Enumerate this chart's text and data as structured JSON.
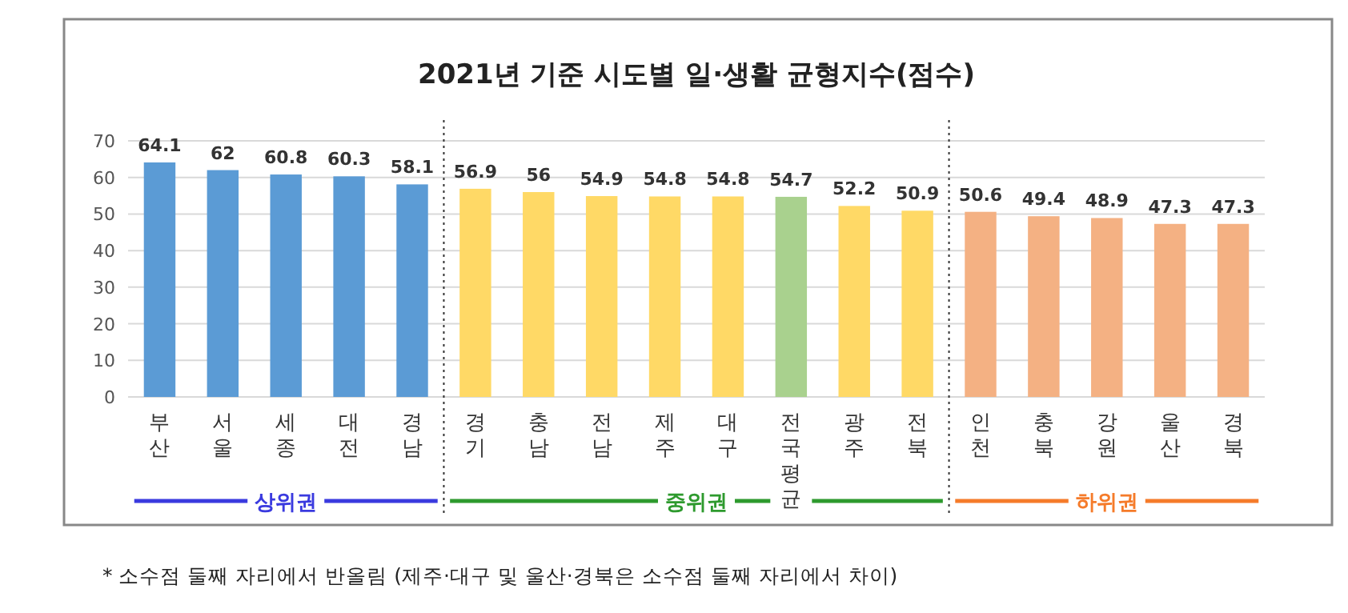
{
  "chart_data": {
    "type": "bar",
    "title": "2021년 기준 시도별 일·생활 균형지수(점수)",
    "categories": [
      "부산",
      "서울",
      "세종",
      "대전",
      "경남",
      "경기",
      "충남",
      "전남",
      "제주",
      "대구",
      "전국평균",
      "광주",
      "전북",
      "인천",
      "충북",
      "강원",
      "울산",
      "경북"
    ],
    "values": [
      64.1,
      62,
      60.8,
      60.3,
      58.1,
      56.9,
      56,
      54.9,
      54.8,
      54.8,
      54.7,
      52.2,
      50.9,
      50.6,
      49.4,
      48.9,
      47.3,
      47.3
    ],
    "colors": [
      "#5b9bd5",
      "#5b9bd5",
      "#5b9bd5",
      "#5b9bd5",
      "#5b9bd5",
      "#ffd966",
      "#ffd966",
      "#ffd966",
      "#ffd966",
      "#ffd966",
      "#a9d18e",
      "#ffd966",
      "#ffd966",
      "#f4b183",
      "#f4b183",
      "#f4b183",
      "#f4b183",
      "#f4b183"
    ],
    "ylim": [
      0,
      70
    ],
    "yticks": [
      0,
      10,
      20,
      30,
      40,
      50,
      60,
      70
    ],
    "grid": "y",
    "data_labels": true,
    "annotations": [
      "상위권",
      "중위권",
      "하위권",
      "* 소수점 둘째 자리에서 반올림 (제주·대구 및 울산·경북은 소수점 둘째 자리에서 차이)"
    ]
  }
}
